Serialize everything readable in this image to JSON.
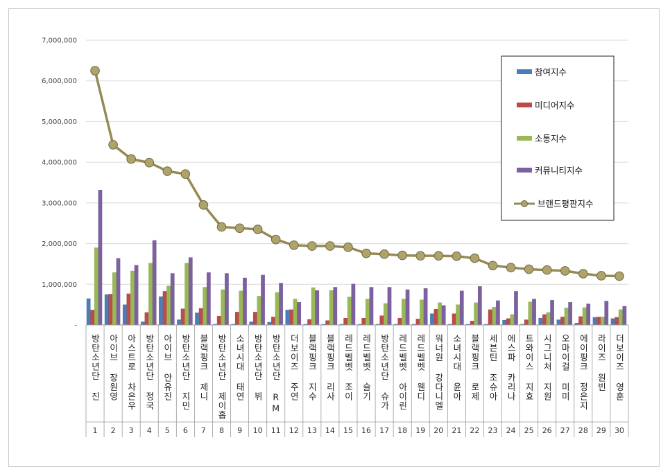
{
  "chart_data": {
    "type": "bar",
    "y_ticks": [
      "-",
      "1,000,000",
      "2,000,000",
      "3,000,000",
      "4,000,000",
      "5,000,000",
      "6,000,000",
      "7,000,000"
    ],
    "ylim": [
      0,
      7000000
    ],
    "legend_position": "right",
    "categories": [
      {
        "rank": "1",
        "name": "방탄소년단 진"
      },
      {
        "rank": "2",
        "name": "아이브 장원영"
      },
      {
        "rank": "3",
        "name": "아스트로 차은우"
      },
      {
        "rank": "4",
        "name": "방탄소년단 정국"
      },
      {
        "rank": "5",
        "name": "아이브 안유진"
      },
      {
        "rank": "6",
        "name": "방탄소년단 지민"
      },
      {
        "rank": "7",
        "name": "블랙핑크 제니"
      },
      {
        "rank": "8",
        "name": "방탄소년단 제이홉"
      },
      {
        "rank": "9",
        "name": "소녀시대 태연"
      },
      {
        "rank": "10",
        "name": "방탄소년단 뷔"
      },
      {
        "rank": "11",
        "name": "방탄소년단 RM"
      },
      {
        "rank": "12",
        "name": "더보이즈 주연"
      },
      {
        "rank": "13",
        "name": "블랙핑크 지수"
      },
      {
        "rank": "14",
        "name": "블랙핑크 리사"
      },
      {
        "rank": "15",
        "name": "레드벨벳 조이"
      },
      {
        "rank": "16",
        "name": "레드벨벳 슬기"
      },
      {
        "rank": "17",
        "name": "방탄소년단 슈가"
      },
      {
        "rank": "18",
        "name": "레드벨벳 아이린"
      },
      {
        "rank": "19",
        "name": "레드벨벳 웬디"
      },
      {
        "rank": "20",
        "name": "워너원 강다니엘"
      },
      {
        "rank": "21",
        "name": "소녀시대 윤아"
      },
      {
        "rank": "22",
        "name": "블랙핑크 로제"
      },
      {
        "rank": "23",
        "name": "세븐틴 조슈아"
      },
      {
        "rank": "24",
        "name": "에스파 카리나"
      },
      {
        "rank": "25",
        "name": "트와이스 지효"
      },
      {
        "rank": "26",
        "name": "시그니처 지원"
      },
      {
        "rank": "27",
        "name": "오마이걸 미미"
      },
      {
        "rank": "28",
        "name": "에이핑크 정은지"
      },
      {
        "rank": "29",
        "name": "라이즈 원빈"
      },
      {
        "rank": "30",
        "name": "더보이즈 영훈"
      }
    ],
    "series": [
      {
        "name": "참여지수",
        "type": "bar",
        "color": "#4a7ebb",
        "values": [
          650000,
          750000,
          500000,
          80000,
          700000,
          130000,
          300000,
          20000,
          20000,
          80000,
          70000,
          370000,
          20000,
          20000,
          20000,
          20000,
          20000,
          20000,
          20000,
          280000,
          20000,
          20000,
          20000,
          120000,
          20000,
          170000,
          130000,
          50000,
          190000,
          160000
        ]
      },
      {
        "name": "미디어지수",
        "type": "bar",
        "color": "#be4b48",
        "values": [
          370000,
          760000,
          770000,
          310000,
          830000,
          400000,
          410000,
          220000,
          320000,
          320000,
          200000,
          380000,
          140000,
          110000,
          170000,
          170000,
          230000,
          170000,
          150000,
          390000,
          280000,
          100000,
          380000,
          160000,
          130000,
          260000,
          200000,
          210000,
          200000,
          190000
        ]
      },
      {
        "name": "소통지수",
        "type": "bar",
        "color": "#98b954",
        "values": [
          1900000,
          1290000,
          1330000,
          1520000,
          960000,
          1520000,
          930000,
          870000,
          840000,
          710000,
          800000,
          640000,
          920000,
          850000,
          690000,
          640000,
          530000,
          640000,
          620000,
          550000,
          500000,
          550000,
          440000,
          260000,
          570000,
          310000,
          420000,
          430000,
          200000,
          380000
        ]
      },
      {
        "name": "커뮤니티지수",
        "type": "bar",
        "color": "#7d60a0",
        "values": [
          3320000,
          1640000,
          1470000,
          2080000,
          1270000,
          1660000,
          1290000,
          1270000,
          1160000,
          1230000,
          1030000,
          560000,
          850000,
          930000,
          1010000,
          930000,
          930000,
          870000,
          900000,
          480000,
          840000,
          950000,
          600000,
          830000,
          640000,
          610000,
          560000,
          520000,
          590000,
          460000
        ]
      },
      {
        "name": "브랜드평판지수",
        "type": "line",
        "color": "#948a54",
        "values": [
          6250000,
          4430000,
          4080000,
          3990000,
          3780000,
          3710000,
          2950000,
          2410000,
          2380000,
          2350000,
          2100000,
          1960000,
          1940000,
          1940000,
          1910000,
          1760000,
          1740000,
          1710000,
          1700000,
          1700000,
          1690000,
          1640000,
          1460000,
          1410000,
          1370000,
          1350000,
          1330000,
          1260000,
          1210000,
          1200000
        ]
      }
    ]
  }
}
